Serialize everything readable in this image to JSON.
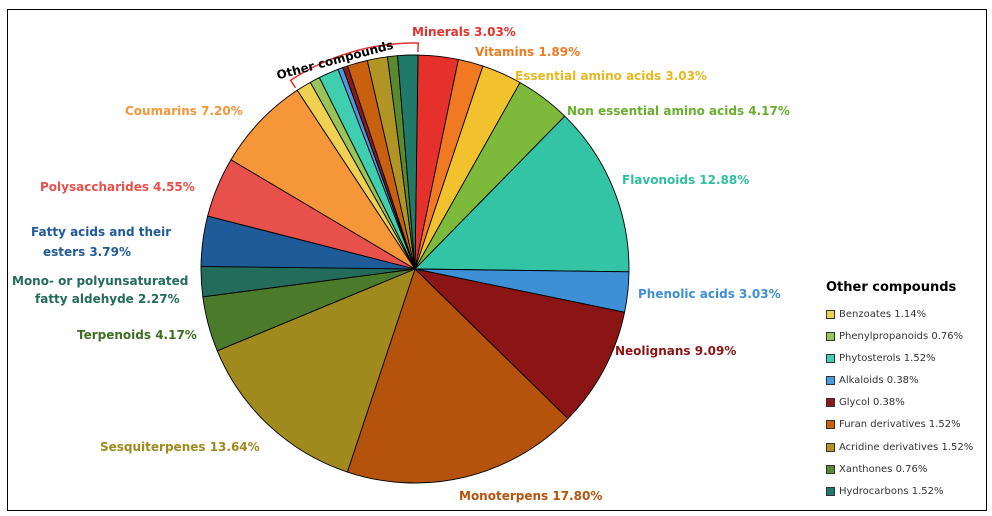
{
  "chart_data": {
    "type": "pie",
    "slices": [
      {
        "label": "Minerals 3.03%",
        "value": 3.03,
        "color": "#e5302c"
      },
      {
        "label": "Vitamins 1.89%",
        "value": 1.89,
        "color": "#f07a22"
      },
      {
        "label": "Essential amino acids 3.03%",
        "value": 3.03,
        "color": "#f2c12e"
      },
      {
        "label": "Non essential amino acids 4.17%",
        "value": 4.17,
        "color": "#7dba3b"
      },
      {
        "label": "Flavonoids 12.88%",
        "value": 12.88,
        "color": "#33c4a6"
      },
      {
        "label": "Phenolic acids 3.03%",
        "value": 3.03,
        "color": "#3d8fd6"
      },
      {
        "label": "Neolignans 9.09%",
        "value": 9.09,
        "color": "#8b1414"
      },
      {
        "label": "Monoterpens 17.80%",
        "value": 17.8,
        "color": "#b5520b"
      },
      {
        "label": "Sesquiterpenes 13.64%",
        "value": 13.64,
        "color": "#a08a1e"
      },
      {
        "label": "Terpenoids 4.17%",
        "value": 4.17,
        "color": "#4a7a2a"
      },
      {
        "label": "Mono- or polyunsaturated fatty aldehyde 2.27%",
        "value": 2.27,
        "color": "#236b5b"
      },
      {
        "label": "Fatty acids and their esters 3.79%",
        "value": 3.79,
        "color": "#1f5a99"
      },
      {
        "label": "Polysaccharides 4.55%",
        "value": 4.55,
        "color": "#e8504b"
      },
      {
        "label": "Coumarins 7.20%",
        "value": 7.2,
        "color": "#f59638"
      },
      {
        "label": "Benzoates 1.14%",
        "value": 1.14,
        "color": "#f0d050"
      },
      {
        "label": "Phenylpropanoids 0.76%",
        "value": 0.76,
        "color": "#9ac45a"
      },
      {
        "label": "Phytosterols 1.52%",
        "value": 1.52,
        "color": "#3fcfb0"
      },
      {
        "label": "Alkaloids 0.38%",
        "value": 0.38,
        "color": "#4a9ae0"
      },
      {
        "label": "Glycol 0.38%",
        "value": 0.38,
        "color": "#8c1a1a"
      },
      {
        "label": "Furan derivatives 1.52%",
        "value": 1.52,
        "color": "#c9600f"
      },
      {
        "label": "Acridine derivatives 1.52%",
        "value": 1.52,
        "color": "#b09525"
      },
      {
        "label": "Xanthones 0.76%",
        "value": 0.76,
        "color": "#5a8a30"
      },
      {
        "label": "Hydrocarbons 1.52%",
        "value": 1.52,
        "color": "#207a6a"
      }
    ],
    "labels": [
      {
        "text": "Minerals 3.03%",
        "color": "#e5302c"
      },
      {
        "text": "Vitamins 1.89%",
        "color": "#f07a22"
      },
      {
        "text": "Essential amino acids 3.03%",
        "color": "#e8b820"
      },
      {
        "text": "Non essential amino acids 4.17%",
        "color": "#6aae2e"
      },
      {
        "text": "Flavonoids 12.88%",
        "color": "#2fbfa0"
      },
      {
        "text": "Phenolic acids 3.03%",
        "color": "#3d8fd6"
      },
      {
        "text": "Neolignans 9.09%",
        "color": "#8b1414"
      },
      {
        "text": "Monoterpens 17.80%",
        "color": "#b5520b"
      },
      {
        "text": "Sesquiterpenes 13.64%",
        "color": "#a08a1e"
      },
      {
        "text": "Terpenoids 4.17%",
        "color": "#3f6e22"
      },
      {
        "text": "Mono- or polyunsaturated",
        "color": "#236b5b"
      },
      {
        "text": "fatty aldehyde 2.27%",
        "color": "#236b5b"
      },
      {
        "text": "Fatty acids and their",
        "color": "#1f5a99"
      },
      {
        "text": "esters 3.79%",
        "color": "#1f5a99"
      },
      {
        "text": "Polysaccharides 4.55%",
        "color": "#e8504b"
      },
      {
        "text": "Coumarins 7.20%",
        "color": "#f59638"
      }
    ],
    "group_label": "Other compounds",
    "group_color": "#e5302c",
    "legend": {
      "title": "Other compounds",
      "items": [
        {
          "label": "Benzoates 1.14%",
          "color": "#f0d050"
        },
        {
          "label": "Phenylpropanoids 0.76%",
          "color": "#9ac45a"
        },
        {
          "label": "Phytosterols 1.52%",
          "color": "#3fcfb0"
        },
        {
          "label": "Alkaloids 0.38%",
          "color": "#4a9ae0"
        },
        {
          "label": "Glycol 0.38%",
          "color": "#8c1a1a"
        },
        {
          "label": "Furan derivatives 1.52%",
          "color": "#c9600f"
        },
        {
          "label": "Acridine derivatives 1.52%",
          "color": "#b09525"
        },
        {
          "label": "Xanthones 0.76%",
          "color": "#5a8a30"
        },
        {
          "label": "Hydrocarbons 1.52%",
          "color": "#207a6a"
        }
      ]
    }
  }
}
